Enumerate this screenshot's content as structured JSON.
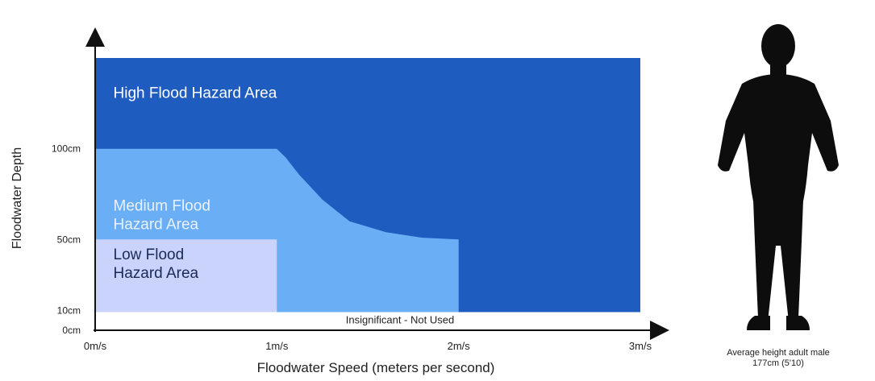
{
  "chart_data": {
    "type": "area",
    "xlabel": "Floodwater Speed (meters per second)",
    "ylabel": "Floodwater Depth",
    "x_ticks": [
      {
        "value": 0,
        "label": "0m/s"
      },
      {
        "value": 1,
        "label": "1m/s"
      },
      {
        "value": 2,
        "label": "2m/s"
      },
      {
        "value": 3,
        "label": "3m/s"
      }
    ],
    "y_ticks": [
      {
        "value": 0,
        "label": "0cm"
      },
      {
        "value": 10,
        "label": "10cm"
      },
      {
        "value": 50,
        "label": "50cm"
      },
      {
        "value": 100,
        "label": "100cm"
      }
    ],
    "xlim": [
      0,
      3
    ],
    "ylim": [
      0,
      150
    ],
    "regions": [
      {
        "name": "High Flood Hazard Area",
        "label_lines": [
          "High Flood Hazard Area"
        ],
        "color": "#1f5cbf",
        "text_color": "#ffffff",
        "label_anchor": [
          0.1,
          128
        ],
        "polygon": [
          [
            0,
            10
          ],
          [
            3,
            10
          ],
          [
            3,
            150
          ],
          [
            0,
            150
          ]
        ]
      },
      {
        "name": "Medium Flood Hazard Area",
        "label_lines": [
          "Medium Flood",
          "Hazard Area"
        ],
        "color": "#6aaef5",
        "text_color": "#eaf2ff",
        "label_anchor": [
          0.1,
          66
        ],
        "polygon": [
          [
            0,
            10
          ],
          [
            2,
            10
          ],
          [
            2,
            50
          ],
          [
            1.8,
            51
          ],
          [
            1.6,
            54
          ],
          [
            1.4,
            60
          ],
          [
            1.25,
            72
          ],
          [
            1.12,
            86
          ],
          [
            1.05,
            95
          ],
          [
            1.0,
            100
          ],
          [
            0,
            100
          ]
        ]
      },
      {
        "name": "Low Flood Hazard Area",
        "label_lines": [
          "Low Flood",
          "Hazard Area"
        ],
        "color": "#c9d3fb",
        "text_color": "#1b2a55",
        "label_anchor": [
          0.1,
          39
        ],
        "polygon": [
          [
            0,
            10
          ],
          [
            1,
            10
          ],
          [
            1,
            50
          ],
          [
            0,
            50
          ]
        ]
      }
    ],
    "band": {
      "label": "Insignificant - Not Used",
      "from": 0,
      "to": 10,
      "color": "#ffffff"
    },
    "reference": {
      "caption_line1": "Average height adult male",
      "caption_line2": "177cm (5'10)",
      "icon": "person-silhouette-icon"
    }
  }
}
